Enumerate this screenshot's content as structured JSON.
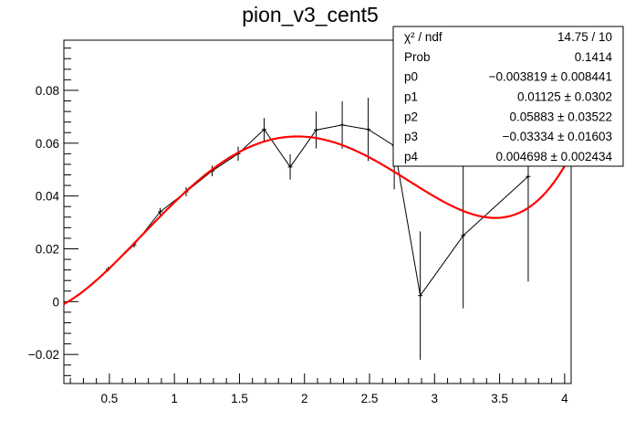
{
  "chart_data": {
    "type": "scatter",
    "title": "pion_v3_cent5",
    "xlabel": "",
    "ylabel": "",
    "xlim": [
      0.15,
      4.05
    ],
    "ylim": [
      -0.031,
      0.099
    ],
    "x_ticks": [
      0.5,
      1,
      1.5,
      2,
      2.5,
      3,
      3.5,
      4
    ],
    "x_tick_labels": [
      "0.5",
      "1",
      "1.5",
      "2",
      "2.5",
      "3",
      "3.5",
      "4"
    ],
    "y_ticks": [
      -0.02,
      0,
      0.02,
      0.04,
      0.06,
      0.08
    ],
    "y_tick_labels": [
      "−0.02",
      "0",
      "0.02",
      "0.04",
      "0.06",
      "0.08"
    ],
    "grid": false,
    "series": [
      {
        "kind": "data-with-errors",
        "color": "#000000",
        "x": [
          0.49,
          0.69,
          0.89,
          1.09,
          1.29,
          1.49,
          1.69,
          1.89,
          2.09,
          2.29,
          2.49,
          2.69,
          2.89,
          3.22,
          3.72
        ],
        "y": [
          0.0123,
          0.0215,
          0.034,
          0.0416,
          0.0495,
          0.056,
          0.0652,
          0.051,
          0.065,
          0.0669,
          0.0652,
          0.059,
          0.0023,
          0.025,
          0.0474
        ],
        "y_error": [
          0.0008,
          0.001,
          0.0015,
          0.0017,
          0.002,
          0.0027,
          0.0043,
          0.0048,
          0.007,
          0.009,
          0.012,
          0.0165,
          0.0243,
          0.0275,
          0.0398
        ]
      },
      {
        "kind": "fit-function",
        "color": "#ff0000",
        "formula": "p0 + p1*x + p2*x^2 + p3*x^3 + p4*x^4",
        "params": [
          -0.003819,
          0.01125,
          0.05883,
          -0.03334,
          0.004698
        ],
        "x_range": [
          0.15,
          4.05
        ]
      }
    ],
    "stats_box": {
      "position": "top-right",
      "rows": [
        {
          "label": "χ² / ndf",
          "value": "14.75 / 10"
        },
        {
          "label": "Prob",
          "value": "0.1414"
        },
        {
          "label": "p0",
          "value": "−0.003819 ± 0.008441"
        },
        {
          "label": "p1",
          "value": "0.01125 ± 0.0302"
        },
        {
          "label": "p2",
          "value": "0.05883 ± 0.03522"
        },
        {
          "label": "p3",
          "value": "−0.03334 ± 0.01603"
        },
        {
          "label": "p4",
          "value": "0.004698 ± 0.002434"
        }
      ]
    }
  }
}
